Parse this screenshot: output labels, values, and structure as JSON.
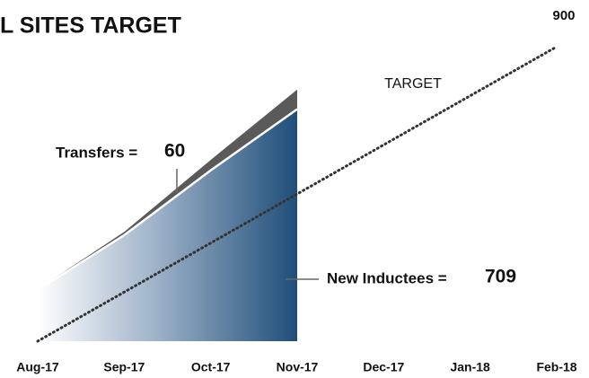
{
  "chart_data": {
    "type": "stacked-area",
    "title": "L SITES TARGET",
    "categories": [
      "Aug-17",
      "Sep-17",
      "Oct-17",
      "Nov-17",
      "Dec-17",
      "Jan-18",
      "Feb-18"
    ],
    "series": [
      {
        "name": "New Inductees",
        "label": "New Inductees =",
        "color": "#1f4e79",
        "values": [
          157,
          324,
          522,
          709,
          null,
          null,
          null
        ]
      },
      {
        "name": "Transfers",
        "label": "Transfers =",
        "color": "#5a5a5a",
        "values": [
          2,
          10,
          32,
          60,
          null,
          null,
          null
        ]
      }
    ],
    "target": {
      "name": "TARGET",
      "color": "#333333",
      "values": [
        0,
        150,
        300,
        450,
        600,
        750,
        900
      ]
    },
    "ylim": [
      0,
      900
    ]
  }
}
